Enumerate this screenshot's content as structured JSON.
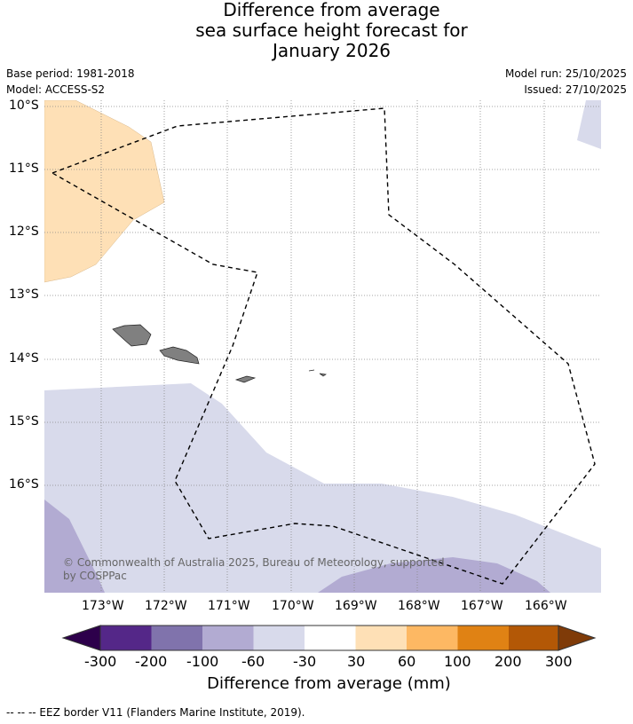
{
  "title": [
    "Difference from average",
    "sea surface height forecast for",
    "January 2026"
  ],
  "meta": {
    "base_period": "Base period: 1981-2018",
    "model": "Model: ACCESS-S2",
    "model_run": "Model run: 25/10/2025",
    "issued": "Issued: 27/10/2025"
  },
  "lat_labels": [
    "10°S",
    "11°S",
    "12°S",
    "13°S",
    "14°S",
    "15°S",
    "16°S"
  ],
  "lon_labels": [
    "173°W",
    "172°W",
    "171°W",
    "170°W",
    "169°W",
    "168°W",
    "167°W",
    "166°W"
  ],
  "copyright": [
    "© Commonwealth of Australia 2025, Bureau of Meteorology, supported",
    "by COSPPac"
  ],
  "colorbar": {
    "label": "Difference from average (mm)",
    "ticks": [
      "-300",
      "-200",
      "-100",
      "-60",
      "-30",
      "30",
      "60",
      "100",
      "200",
      "300"
    ],
    "colors": [
      "#2d004b",
      "#542788",
      "#8073ac",
      "#b2abd2",
      "#d8daeb",
      "#ffffff",
      "#fee0b6",
      "#fdb863",
      "#e08214",
      "#b35806",
      "#7f3b08"
    ]
  },
  "footer": "--  --  -- EEZ border V11 (Flanders Marine Institute, 2019)."
}
